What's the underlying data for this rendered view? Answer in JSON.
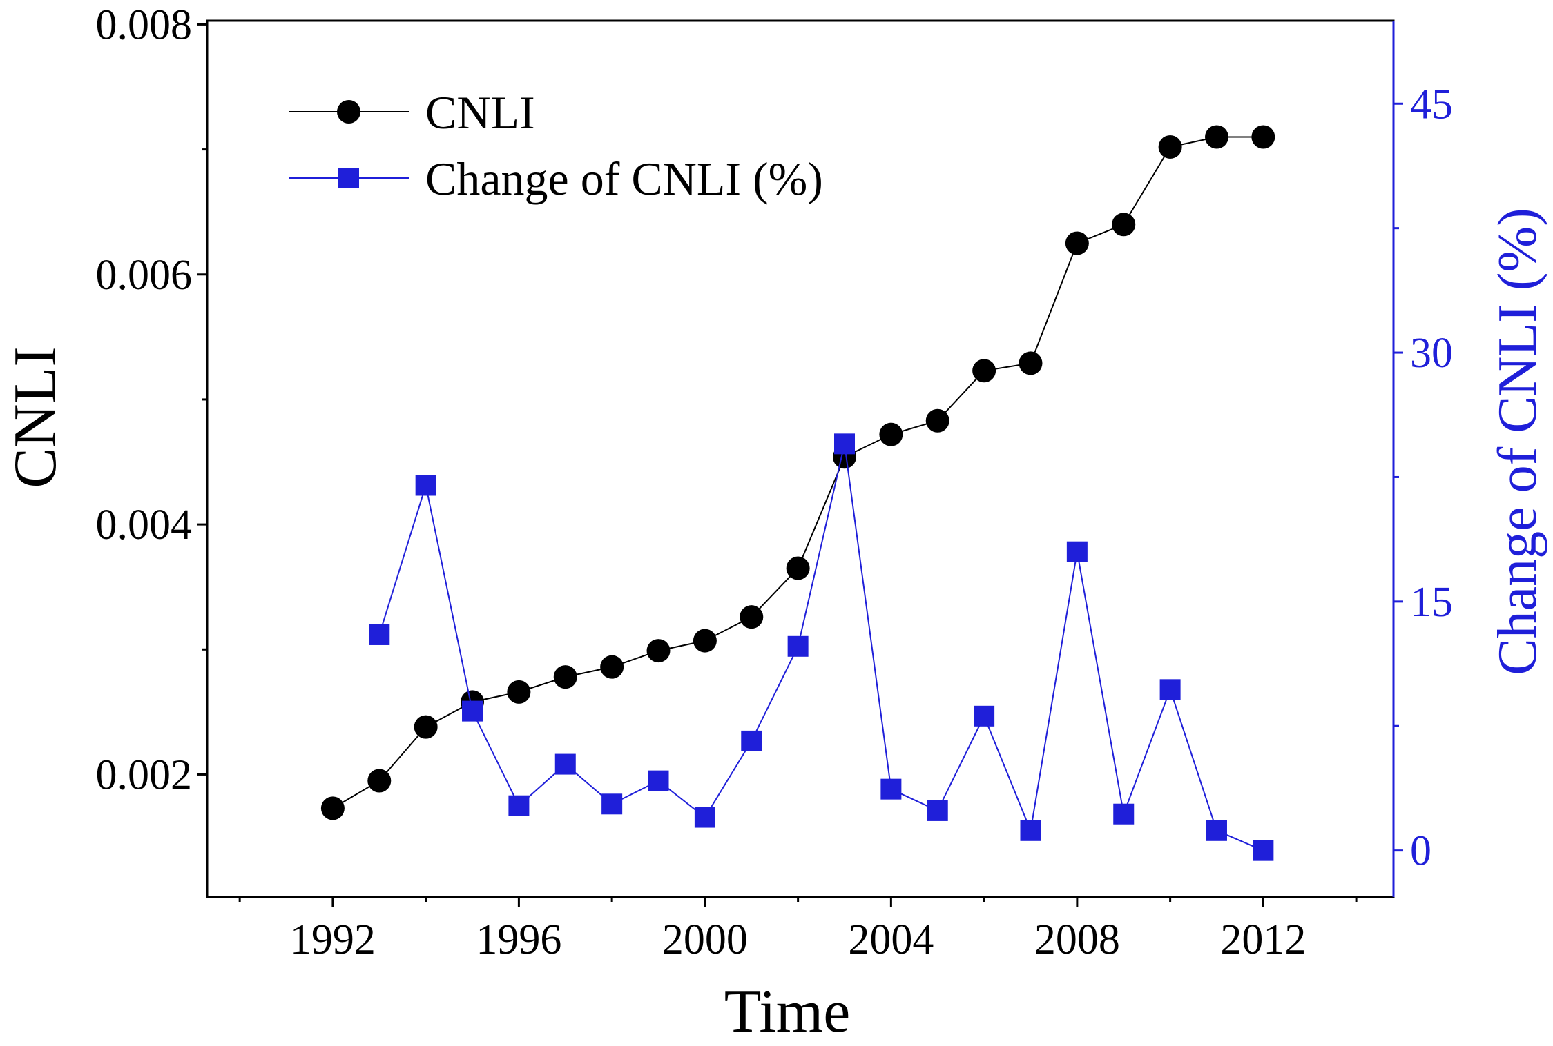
{
  "chart_data": {
    "type": "line",
    "title": "",
    "xlabel": "Time",
    "ylabel": "CNLI",
    "y2label": "Change of CNLI (%)",
    "xlim": [
      1989.3,
      2014.8
    ],
    "ylim": [
      0.00102,
      0.00803
    ],
    "y2lim": [
      -2.8,
      50.0
    ],
    "x_ticks": [
      1992,
      1996,
      2000,
      2004,
      2008,
      2012
    ],
    "x_tick_labels": [
      "1992",
      "1996",
      "2000",
      "2004",
      "2008",
      "2012"
    ],
    "y_ticks": [
      0.002,
      0.004,
      0.006,
      0.008
    ],
    "y_tick_labels": [
      "0.002",
      "0.004",
      "0.006",
      "0.008"
    ],
    "y2_ticks": [
      0,
      15,
      30,
      45
    ],
    "y2_tick_labels": [
      "0",
      "15",
      "30",
      "45"
    ],
    "legend_position": "top-left",
    "grid": false,
    "colors": {
      "cnli": "#000000",
      "change": "#1f1fd9"
    },
    "series": [
      {
        "name": "CNLI",
        "axis": "left",
        "marker": "circle",
        "x": [
          1992,
          1993,
          1994,
          1995,
          1996,
          1997,
          1998,
          1999,
          2000,
          2001,
          2002,
          2003,
          2004,
          2005,
          2006,
          2007,
          2008,
          2009,
          2010,
          2011,
          2012
        ],
        "values": [
          0.00173,
          0.00195,
          0.00238,
          0.00258,
          0.00266,
          0.00278,
          0.00286,
          0.00299,
          0.00307,
          0.00326,
          0.00365,
          0.00454,
          0.00472,
          0.00483,
          0.00523,
          0.00529,
          0.00625,
          0.0064,
          0.00702,
          0.0071,
          0.0071
        ]
      },
      {
        "name": "Change of CNLI (%)",
        "axis": "right",
        "marker": "square",
        "x": [
          1993,
          1994,
          1995,
          1996,
          1997,
          1998,
          1999,
          2000,
          2001,
          2002,
          2003,
          2004,
          2005,
          2006,
          2007,
          2008,
          2009,
          2010,
          2011,
          2012
        ],
        "values": [
          13.0,
          22.0,
          8.4,
          2.7,
          5.2,
          2.8,
          4.2,
          2.0,
          6.6,
          12.3,
          24.5,
          3.7,
          2.4,
          8.1,
          1.2,
          18.0,
          2.2,
          9.7,
          1.2,
          0.0
        ]
      }
    ]
  }
}
